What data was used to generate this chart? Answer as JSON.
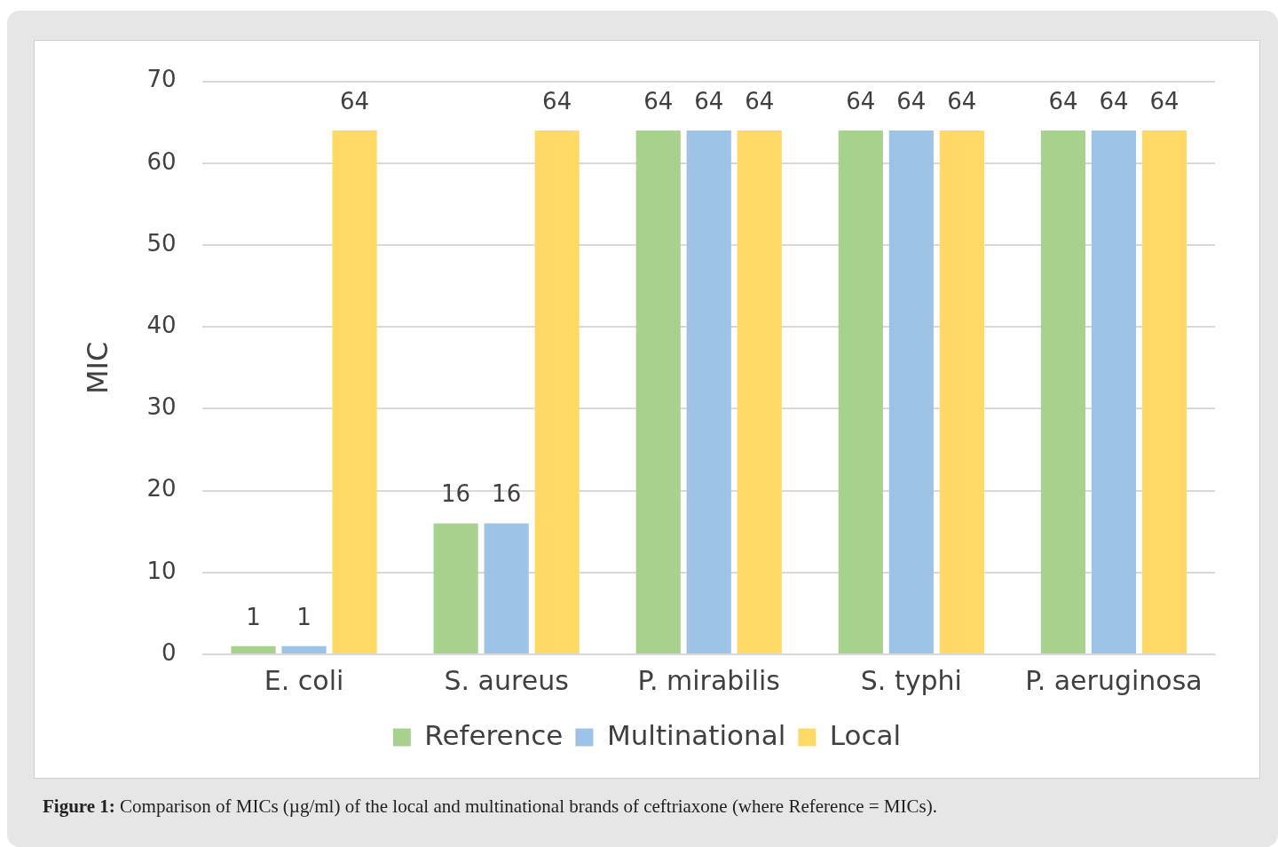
{
  "chart_data": {
    "type": "bar",
    "ylabel": "MIC",
    "categories": [
      "E. coli",
      "S. aureus",
      "P. mirabilis",
      "S. typhi",
      "P. aeruginosa"
    ],
    "series": [
      {
        "name": "Reference",
        "color": "#a9d18e",
        "values": [
          1,
          16,
          64,
          64,
          64
        ]
      },
      {
        "name": "Multinational",
        "color": "#9dc3e6",
        "values": [
          1,
          16,
          64,
          64,
          64
        ]
      },
      {
        "name": "Local",
        "color": "#ffd966",
        "values": [
          64,
          64,
          64,
          64,
          64
        ]
      }
    ],
    "ylim": [
      0,
      70
    ],
    "yticks": [
      0,
      10,
      20,
      30,
      40,
      50,
      60,
      70
    ],
    "grid": "y",
    "legend": "bottom",
    "data_labels": true,
    "annotations": [
      "Figure 1: Comparison of MICs (µg/ml) of the local and multinational brands of ceftriaxone (where Reference = MICs)."
    ]
  }
}
